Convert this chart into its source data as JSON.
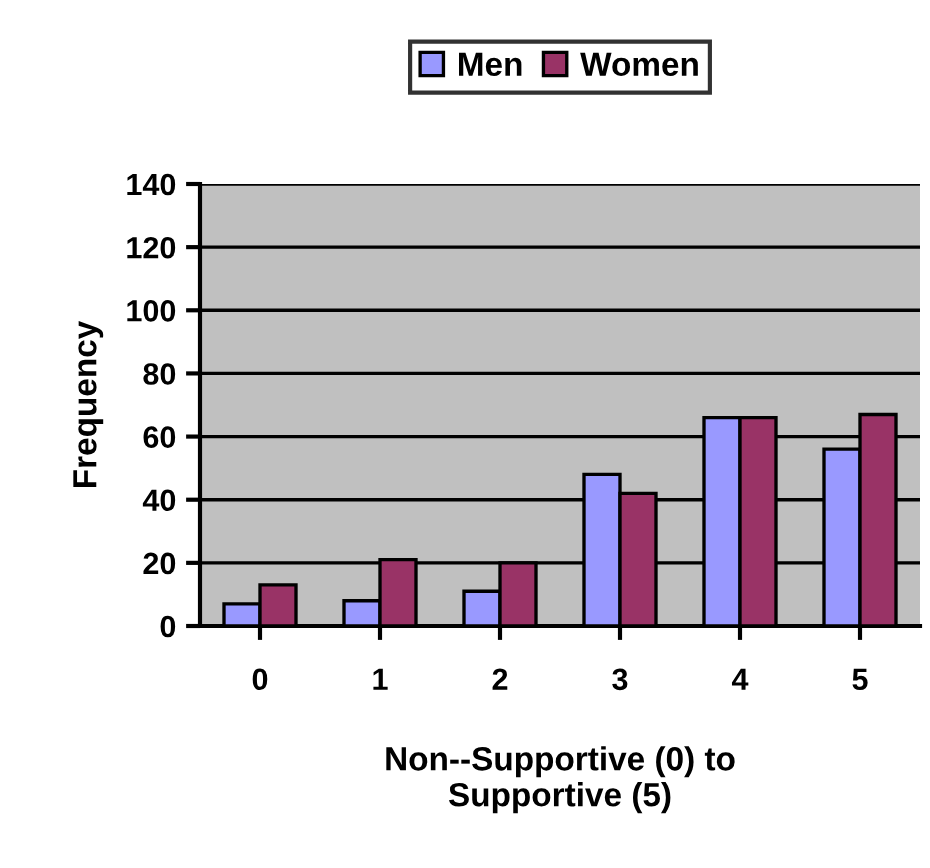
{
  "chart_data": {
    "type": "bar",
    "xlabel": "Non--Supportive (0) to\nSupportive (5)",
    "ylabel": "Frequency",
    "categories": [
      "0",
      "1",
      "2",
      "3",
      "4",
      "5"
    ],
    "series": [
      {
        "name": "Men",
        "color": "#9999ff",
        "values": [
          7,
          8,
          11,
          48,
          66,
          56
        ]
      },
      {
        "name": "Women",
        "color": "#993366",
        "values": [
          13,
          21,
          20,
          42,
          66,
          67
        ]
      }
    ],
    "ylim": [
      0,
      140
    ],
    "yticks": [
      0,
      20,
      40,
      60,
      80,
      100,
      120,
      140
    ],
    "grid": "y",
    "legend": "top"
  }
}
